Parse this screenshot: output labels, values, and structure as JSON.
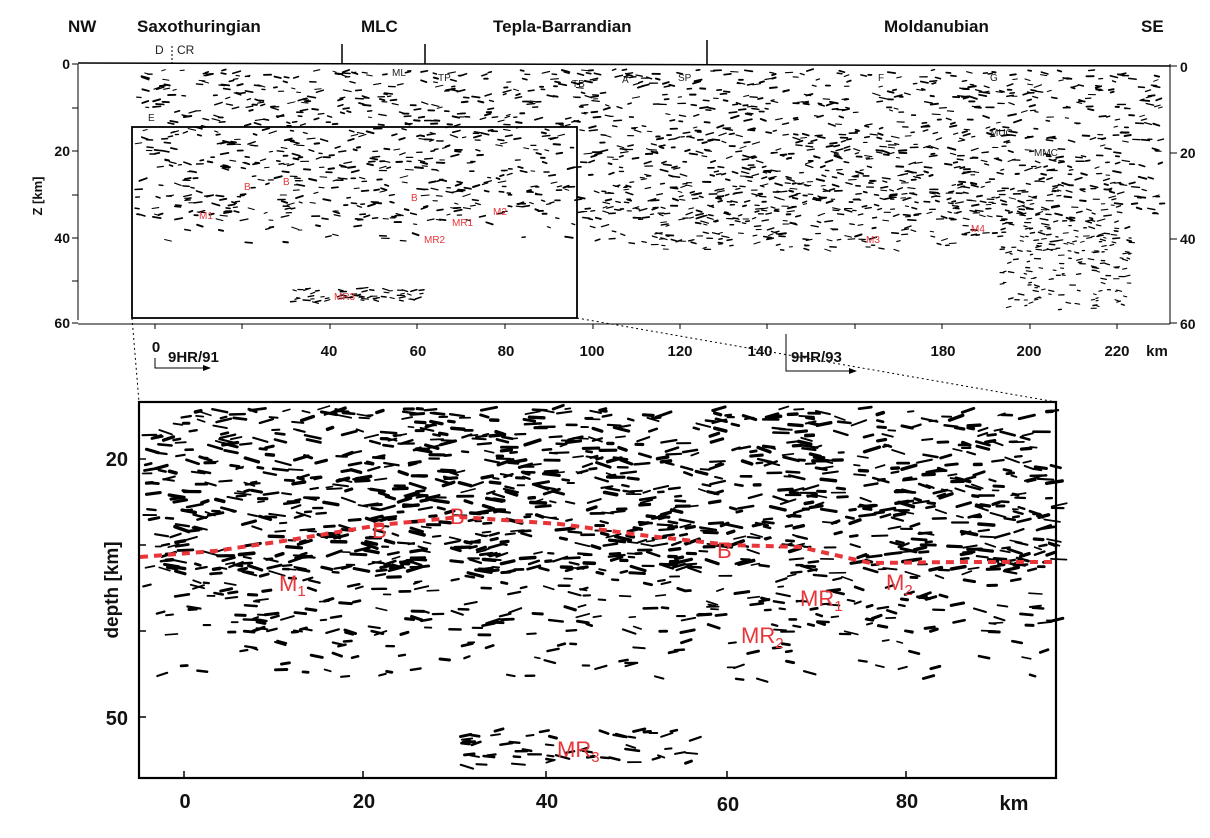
{
  "top_profile": {
    "units": [
      {
        "label": "NW"
      },
      {
        "label": "Saxothuringian"
      },
      {
        "label": "MLC"
      },
      {
        "label": "Tepla-Barrandian"
      },
      {
        "label": "Moldanubian"
      },
      {
        "label": "SE"
      }
    ],
    "small_labels": [
      {
        "label": "D"
      },
      {
        "label": "CR"
      },
      {
        "label": "ML"
      },
      {
        "label": "TP"
      },
      {
        "label": "TB"
      },
      {
        "label": "A"
      },
      {
        "label": "SP"
      },
      {
        "label": "F"
      },
      {
        "label": "G"
      },
      {
        "label": "E"
      },
      {
        "label": "MUC"
      },
      {
        "label": "MMC"
      }
    ],
    "z_axis_title": "Z [km]",
    "z_ticks": [
      "0",
      "20",
      "40",
      "60"
    ],
    "x_ticks": [
      "0",
      "40",
      "60",
      "80",
      "100",
      "120",
      "140",
      "180",
      "200",
      "220"
    ],
    "x_unit": "km",
    "profile_labels": [
      {
        "label": "9HR/91"
      },
      {
        "label": "9HR/93"
      }
    ],
    "red_labels": [
      "B",
      "B",
      "B",
      "M1",
      "MR1",
      "M2",
      "MR2",
      "MR3",
      "M3",
      "M4"
    ]
  },
  "detail": {
    "y_axis_title": "depth [km]",
    "y_ticks": [
      "20",
      "50"
    ],
    "x_ticks": [
      "0",
      "20",
      "40",
      "60",
      "80"
    ],
    "x_unit": "km",
    "red_labels": [
      {
        "text": "B"
      },
      {
        "text": "B"
      },
      {
        "text": "B"
      },
      {
        "text": "M",
        "sub": "1"
      },
      {
        "text": "MR",
        "sub": "1"
      },
      {
        "text": "M",
        "sub": "2"
      },
      {
        "text": "MR",
        "sub": "2"
      },
      {
        "text": "MR",
        "sub": "3"
      }
    ]
  },
  "colors": {
    "red": "#e8353a",
    "ink": "#000000"
  }
}
